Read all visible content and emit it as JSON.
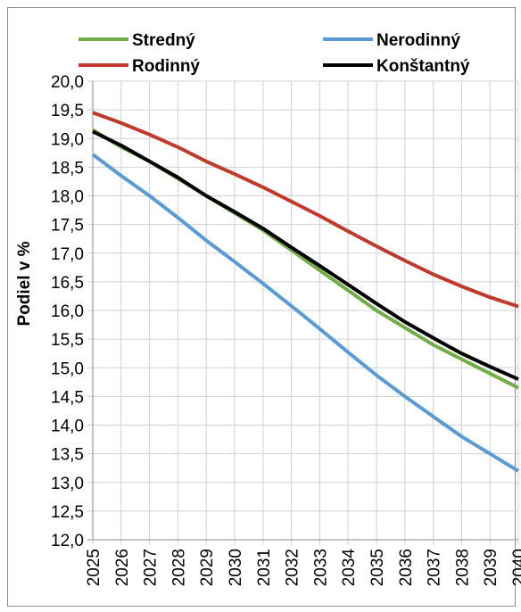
{
  "chart_data": {
    "type": "line",
    "title": "",
    "xlabel": "",
    "ylabel": "Podiel v %",
    "ylim": [
      12.0,
      20.0
    ],
    "y_ticks": [
      "20,0",
      "19,5",
      "19,0",
      "18,5",
      "18,0",
      "17,5",
      "17,0",
      "16,5",
      "16,0",
      "15,5",
      "15,0",
      "14,5",
      "14,0",
      "13,5",
      "13,0",
      "12,5",
      "12,0"
    ],
    "x": [
      "2025",
      "2026",
      "2027",
      "2028",
      "2029",
      "2030",
      "2031",
      "2032",
      "2033",
      "2034",
      "2035",
      "2036",
      "2037",
      "2038",
      "2039",
      "2040"
    ],
    "grid": true,
    "legend_position": "top",
    "series": [
      {
        "name": "Stredný",
        "color": "#70ad47",
        "values": [
          19.15,
          18.85,
          18.6,
          18.3,
          18.0,
          17.7,
          17.4,
          17.05,
          16.7,
          16.35,
          16.0,
          15.7,
          15.4,
          15.15,
          14.9,
          14.65
        ]
      },
      {
        "name": "Nerodinný",
        "color": "#5b9bd5",
        "values": [
          18.72,
          18.35,
          18.0,
          17.62,
          17.22,
          16.85,
          16.47,
          16.08,
          15.68,
          15.27,
          14.87,
          14.5,
          14.15,
          13.8,
          13.5,
          13.2
        ]
      },
      {
        "name": "Rodinný",
        "color": "#c0392b",
        "values": [
          19.45,
          19.27,
          19.07,
          18.85,
          18.6,
          18.38,
          18.15,
          17.9,
          17.65,
          17.38,
          17.12,
          16.87,
          16.63,
          16.42,
          16.23,
          16.07
        ]
      },
      {
        "name": "Konštantný",
        "color": "#000000",
        "values": [
          19.12,
          18.88,
          18.6,
          18.32,
          18.0,
          17.72,
          17.43,
          17.1,
          16.78,
          16.45,
          16.12,
          15.8,
          15.52,
          15.25,
          15.02,
          14.8
        ]
      }
    ]
  }
}
